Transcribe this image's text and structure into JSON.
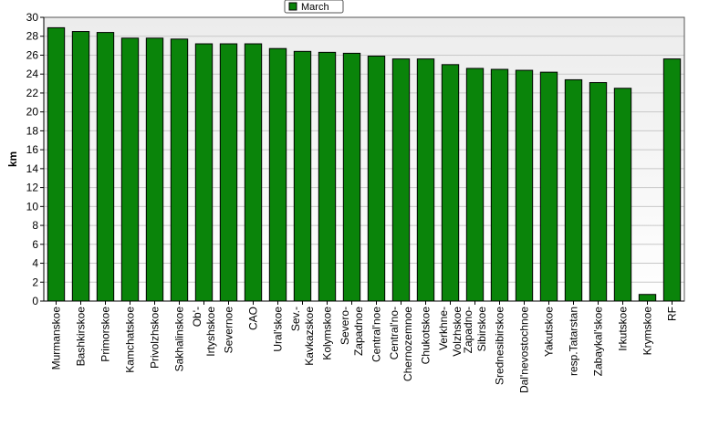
{
  "chart_data": {
    "type": "bar",
    "legend": {
      "position": "top-center",
      "entries": [
        "March"
      ]
    },
    "ylabel": "km",
    "xlabel": "",
    "ylim": [
      0,
      30
    ],
    "yticks": [
      0,
      2,
      4,
      6,
      8,
      10,
      12,
      14,
      16,
      18,
      20,
      22,
      24,
      26,
      28,
      30
    ],
    "grid": true,
    "bar_color": "#0a840a",
    "categories": [
      [
        "Murmanskoe"
      ],
      [
        "Bashkirskoe"
      ],
      [
        "Primorskoe"
      ],
      [
        "Kamchatskoe"
      ],
      [
        "Privolzhskoe"
      ],
      [
        "Sakhalinskoe"
      ],
      [
        "Ob'-",
        "Irtyshskoe"
      ],
      [
        "Severnoe"
      ],
      [
        "CAO"
      ],
      [
        "Ural'skoe"
      ],
      [
        "Sev.-",
        "Kavkazskoe"
      ],
      [
        "Kolymskoe"
      ],
      [
        "Severo-",
        "Zapadnoe"
      ],
      [
        "Central'noe"
      ],
      [
        "Central'no-",
        "Chernozemnoe"
      ],
      [
        "Chukotskoe"
      ],
      [
        "Verkhne-",
        "Volzhskoe"
      ],
      [
        "Zapadno-",
        "Sibirskoe"
      ],
      [
        "Srednesibirskoe"
      ],
      [
        "Dal'nevostochnoe"
      ],
      [
        "Yakutskoe"
      ],
      [
        "resp.Tatarstan"
      ],
      [
        "Zabaykal'skoe"
      ],
      [
        "Irkutskoe"
      ],
      [
        "Krymskoe"
      ],
      [
        "RF"
      ]
    ],
    "series": [
      {
        "name": "March",
        "values": [
          28.9,
          28.5,
          28.4,
          27.8,
          27.8,
          27.7,
          27.2,
          27.2,
          27.2,
          26.7,
          26.4,
          26.3,
          26.2,
          25.9,
          25.6,
          25.6,
          25.0,
          24.6,
          24.5,
          24.4,
          24.2,
          23.4,
          23.1,
          22.5,
          0.7,
          25.6
        ]
      }
    ]
  }
}
